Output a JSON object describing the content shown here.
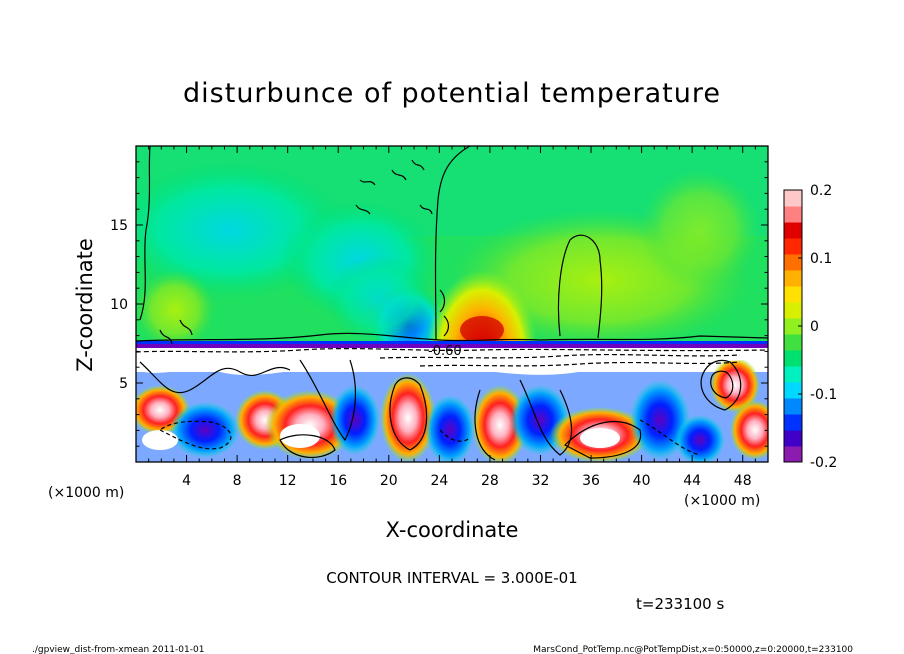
{
  "chart_data": {
    "type": "heatmap",
    "title": "disturbunce of potential temperature",
    "xlabel": "X-coordinate",
    "ylabel": "Z-coordinate",
    "x_unit_left": "(×1000 m)",
    "x_unit_right": "(×1000 m)",
    "xlim": [
      0,
      50
    ],
    "ylim": [
      0,
      20
    ],
    "x_ticks": [
      4,
      8,
      12,
      16,
      20,
      24,
      28,
      32,
      36,
      40,
      44,
      48
    ],
    "y_ticks": [
      5,
      10,
      15
    ],
    "colorbar": {
      "min": -0.2,
      "max": 0.2,
      "ticks": [
        "0.2",
        "0.1",
        "0",
        "-0.1",
        "-0.2"
      ],
      "tick_values": [
        0.2,
        0.1,
        0,
        -0.1,
        -0.2
      ],
      "colors": [
        "#8c1bb0",
        "#4000c8",
        "#0033ff",
        "#0088ff",
        "#00d8ff",
        "#00f0c0",
        "#00e070",
        "#40e040",
        "#90f020",
        "#d8f000",
        "#ffe000",
        "#ffb000",
        "#ff7000",
        "#ff2800",
        "#e00000",
        "#ff8080",
        "#ffc8c8"
      ]
    },
    "contour_label": "-0.60",
    "contour_interval": "CONTOUR INTERVAL = 3.000E-01",
    "time_label": "t=233100 s"
  },
  "footer": {
    "left": "./gpview_dist-from-xmean  2011-01-01",
    "right": "MarsCond_PotTemp.nc@PotTempDist,x=0:50000,z=0:20000,t=233100"
  }
}
